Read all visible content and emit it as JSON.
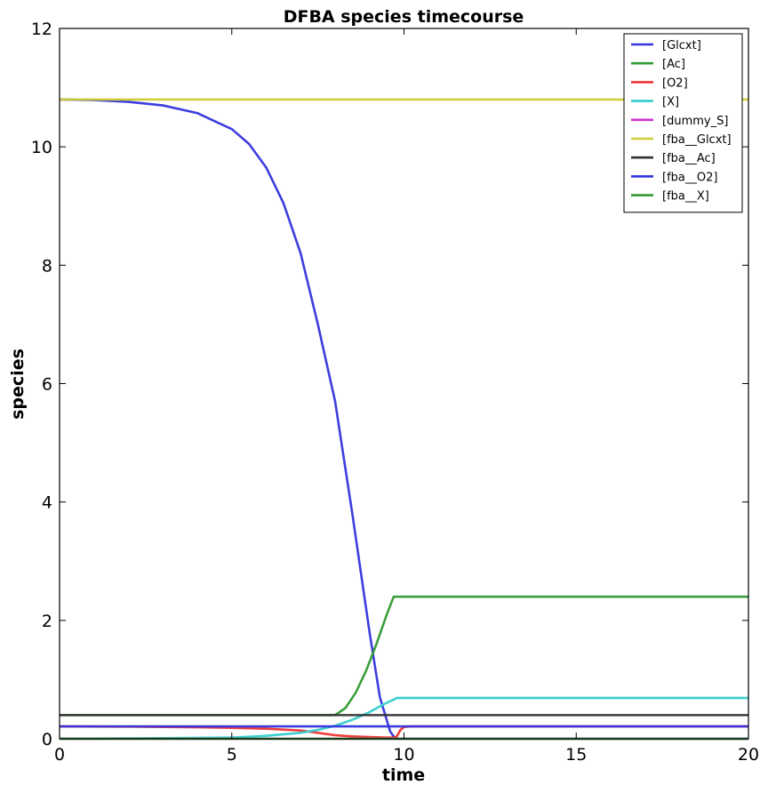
{
  "chart_data": {
    "type": "line",
    "title": "DFBA species timecourse",
    "xlabel": "time",
    "ylabel": "species",
    "xlim": [
      0,
      20
    ],
    "ylim": [
      0,
      12
    ],
    "xticks": [
      0,
      5,
      10,
      15,
      20
    ],
    "yticks": [
      0,
      2,
      4,
      6,
      8,
      10,
      12
    ],
    "grid": false,
    "legend_position": "top-right",
    "series": [
      {
        "name": "[Glcxt]",
        "color": "#3333dd",
        "x": [
          0,
          1,
          2,
          3,
          4,
          5,
          5.5,
          6,
          6.5,
          7,
          7.5,
          8,
          8.5,
          9,
          9.3,
          9.6,
          9.75,
          9.8,
          20
        ],
        "y": [
          10.8,
          10.79,
          10.76,
          10.7,
          10.57,
          10.3,
          10.05,
          9.65,
          9.05,
          8.2,
          7.0,
          5.7,
          3.8,
          1.8,
          0.7,
          0.12,
          0.0,
          0.0,
          0.0
        ]
      },
      {
        "name": "[Ac]",
        "color": "#339933",
        "x": [
          0,
          8.0,
          8.3,
          8.6,
          8.9,
          9.2,
          9.5,
          9.7,
          9.8,
          20
        ],
        "y": [
          0.4,
          0.4,
          0.52,
          0.78,
          1.15,
          1.6,
          2.1,
          2.4,
          2.4,
          2.4
        ]
      },
      {
        "name": "[O2]",
        "color": "#ee3333",
        "x": [
          0,
          2,
          4,
          5,
          6,
          7,
          7.5,
          8,
          8.5,
          9,
          9.5,
          9.75,
          9.8,
          9.9,
          10.0,
          10.2,
          20
        ],
        "y": [
          0.21,
          0.205,
          0.195,
          0.185,
          0.17,
          0.14,
          0.1,
          0.06,
          0.04,
          0.03,
          0.02,
          0.02,
          0.05,
          0.15,
          0.2,
          0.21,
          0.21
        ]
      },
      {
        "name": "[X]",
        "color": "#33cccc",
        "x": [
          0,
          3,
          5,
          6,
          7,
          7.5,
          8,
          8.5,
          9,
          9.4,
          9.8,
          20
        ],
        "y": [
          0.0,
          0.01,
          0.02,
          0.05,
          0.1,
          0.15,
          0.22,
          0.32,
          0.45,
          0.58,
          0.69,
          0.69
        ]
      },
      {
        "name": "[dummy_S]",
        "color": "#cc33cc",
        "x": [
          0,
          20
        ],
        "y": [
          0.0,
          0.0
        ]
      },
      {
        "name": "[fba__Glcxt]",
        "color": "#cccc33",
        "x": [
          0,
          20
        ],
        "y": [
          10.8,
          10.8
        ]
      },
      {
        "name": "[fba__Ac]",
        "color": "#333333",
        "x": [
          0,
          20
        ],
        "y": [
          0.4,
          0.4
        ]
      },
      {
        "name": "[fba__O2]",
        "color": "#3333dd",
        "x": [
          0,
          20
        ],
        "y": [
          0.21,
          0.21
        ]
      },
      {
        "name": "[fba__X]",
        "color": "#339933",
        "x": [
          0,
          20
        ],
        "y": [
          0.0,
          0.0
        ]
      }
    ]
  }
}
